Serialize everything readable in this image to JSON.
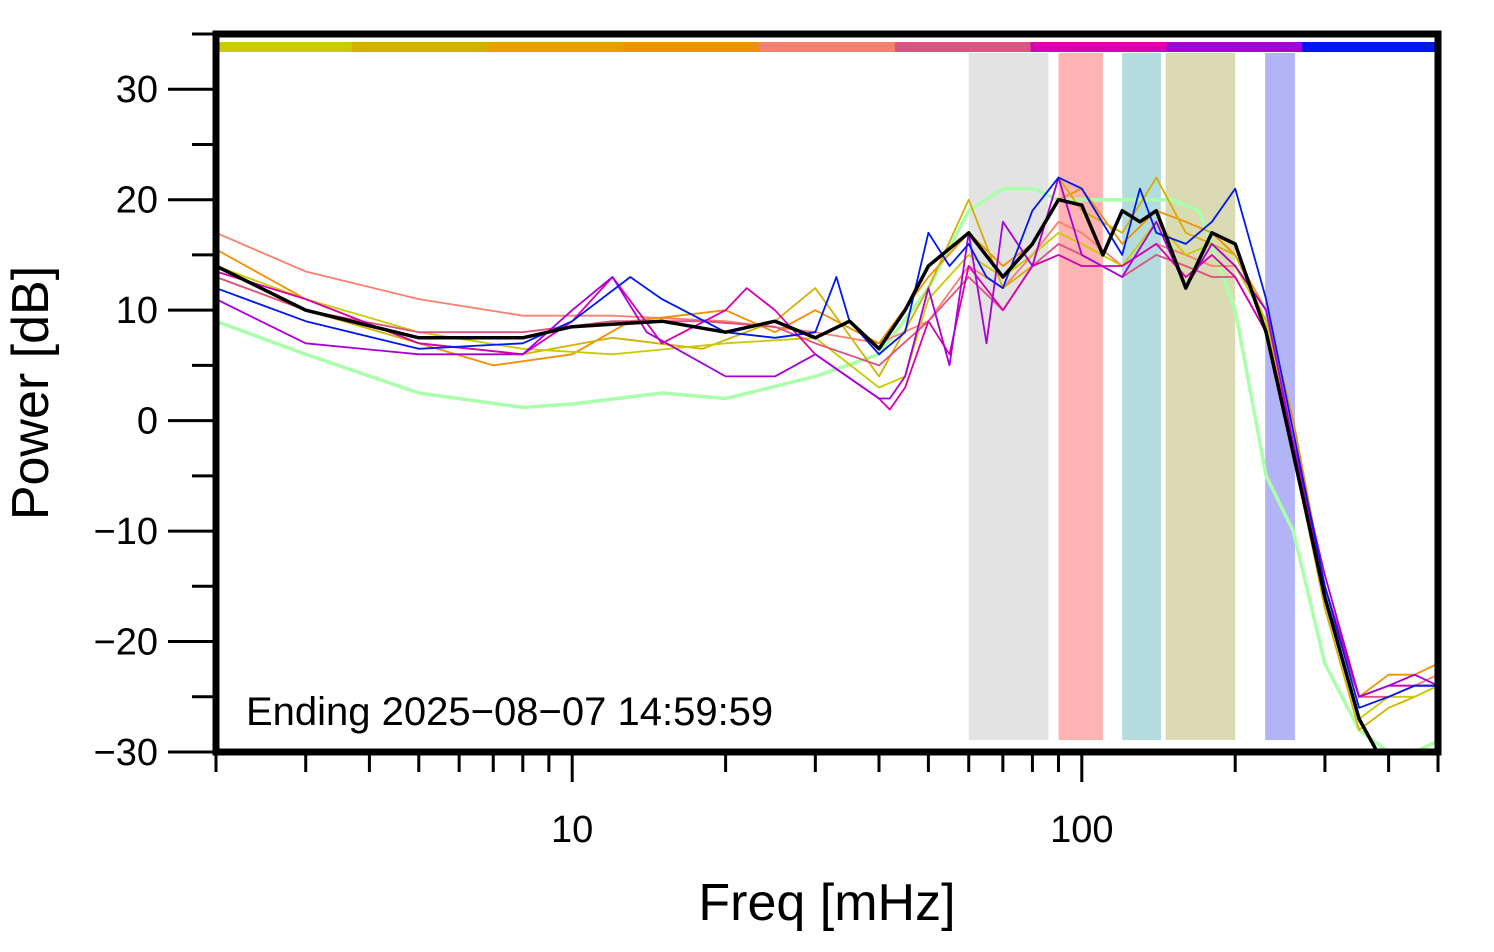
{
  "chart_data": {
    "type": "line",
    "xlabel": "Freq [mHz]",
    "ylabel": "Power [dB]",
    "x_scale": "log",
    "xlim": [
      2,
      500
    ],
    "ylim": [
      -30,
      35
    ],
    "x_tick_labels": [
      {
        "value": 10,
        "label": "10"
      },
      {
        "value": 100,
        "label": "100"
      }
    ],
    "y_tick_labels": [
      {
        "value": 30,
        "label": "30"
      },
      {
        "value": 20,
        "label": "20"
      },
      {
        "value": 10,
        "label": "10"
      },
      {
        "value": 0,
        "label": "0"
      },
      {
        "value": -10,
        "label": "−10"
      },
      {
        "value": -20,
        "label": "−20"
      },
      {
        "value": -30,
        "label": "−30"
      }
    ],
    "annotation": "Ending 2025−08−07 14:59:59",
    "bands": [
      {
        "from": 60,
        "to": 86,
        "color": "#e3e3e3"
      },
      {
        "from": 90,
        "to": 110,
        "color": "#ffb3b3"
      },
      {
        "from": 120,
        "to": 143,
        "color": "#b3dcdf"
      },
      {
        "from": 146,
        "to": 200,
        "color": "#dadab3"
      },
      {
        "from": 229,
        "to": 262,
        "color": "#b3b3f8"
      }
    ],
    "top_bar_colors": [
      "#c8cc00",
      "#d4b000",
      "#e8a000",
      "#f39000",
      "#fa7f6e",
      "#e05080",
      "#d800b0",
      "#a800d8",
      "#0018f0"
    ],
    "series": [
      {
        "color": "#aaffaa",
        "width": 3.5,
        "x": [
          2,
          3,
          5,
          8,
          10,
          15,
          20,
          30,
          40,
          50,
          60,
          70,
          80,
          90,
          100,
          120,
          140,
          150,
          170,
          200,
          230,
          260,
          300,
          350,
          400,
          450,
          500
        ],
        "y": [
          9,
          6,
          2.5,
          1.2,
          1.5,
          2.5,
          2,
          4,
          6,
          12,
          19,
          21,
          21,
          20,
          20,
          20,
          20,
          20,
          19,
          10,
          -5,
          -10,
          -22,
          -28,
          -30,
          -30,
          -29
        ]
      },
      {
        "color": "#fa7f6e",
        "width": 1.8,
        "x": [
          2,
          3,
          5,
          8,
          12,
          20,
          30,
          40,
          50,
          60,
          70,
          80,
          90,
          100,
          120,
          140,
          160,
          180,
          200,
          230,
          260,
          300,
          350,
          400,
          450,
          500
        ],
        "y": [
          17,
          13.5,
          11,
          9.5,
          9.5,
          9,
          8,
          7,
          9,
          14,
          12,
          15,
          18,
          17,
          14,
          16,
          15,
          14,
          14,
          9,
          -2,
          -15,
          -25,
          -24,
          -24,
          -23
        ]
      },
      {
        "color": "#f39000",
        "width": 1.8,
        "x": [
          2,
          3,
          5,
          7,
          10,
          13,
          20,
          25,
          30,
          40,
          50,
          60,
          70,
          80,
          90,
          100,
          120,
          140,
          160,
          180,
          200,
          230,
          260,
          300,
          350,
          400,
          450,
          500
        ],
        "y": [
          15.5,
          11,
          7,
          5,
          6,
          9,
          10,
          8,
          10,
          7,
          13,
          17,
          14,
          16,
          20,
          21,
          16,
          19,
          18,
          17,
          15,
          10,
          0,
          -15,
          -25,
          -23,
          -23,
          -22
        ]
      },
      {
        "color": "#d4b000",
        "width": 1.8,
        "x": [
          2,
          3,
          5,
          8,
          12,
          18,
          25,
          30,
          40,
          50,
          60,
          70,
          80,
          90,
          100,
          120,
          140,
          160,
          180,
          200,
          230,
          260,
          300,
          350,
          400,
          450,
          500
        ],
        "y": [
          13,
          10,
          7,
          6,
          7.5,
          6.5,
          9,
          12,
          4,
          12,
          20,
          12,
          14,
          22,
          19,
          17,
          22,
          17,
          16,
          15,
          9,
          -3,
          -17,
          -28,
          -26,
          -25,
          -24
        ]
      },
      {
        "color": "#c8cc00",
        "width": 1.8,
        "x": [
          2,
          3,
          5,
          8,
          12,
          20,
          30,
          40,
          45,
          50,
          60,
          70,
          80,
          90,
          100,
          120,
          140,
          160,
          180,
          200,
          230,
          260,
          300,
          350,
          400,
          450,
          500
        ],
        "y": [
          14,
          11,
          8,
          6.5,
          6,
          7,
          7.5,
          3,
          4,
          11,
          15,
          13,
          15,
          17,
          16,
          14,
          18,
          15,
          16,
          14,
          9,
          -3,
          -16,
          -27,
          -25,
          -25,
          -24
        ]
      },
      {
        "color": "#e05080",
        "width": 1.8,
        "x": [
          2,
          3,
          5,
          8,
          12,
          18,
          25,
          30,
          40,
          50,
          60,
          70,
          80,
          90,
          100,
          120,
          140,
          160,
          180,
          200,
          230,
          260,
          300,
          350,
          400,
          450,
          500
        ],
        "y": [
          13,
          10,
          8,
          8,
          9,
          9,
          8.5,
          7,
          5,
          9,
          13,
          10,
          14,
          16,
          15,
          13,
          15,
          14,
          13,
          13,
          8,
          -3,
          -16,
          -25,
          -25,
          -24,
          -24
        ]
      },
      {
        "color": "#d800b0",
        "width": 1.8,
        "x": [
          2,
          3,
          5,
          8,
          10,
          12,
          15,
          20,
          22,
          25,
          30,
          40,
          42,
          45,
          50,
          55,
          60,
          70,
          80,
          90,
          100,
          120,
          140,
          160,
          180,
          200,
          230,
          260,
          300,
          350,
          400,
          450,
          500
        ],
        "y": [
          13.5,
          11,
          7,
          6,
          9,
          13,
          7,
          10,
          12,
          10,
          6,
          2,
          1,
          3,
          9,
          6,
          14,
          10,
          14,
          15,
          14,
          14,
          16,
          13,
          15,
          13,
          8,
          -2,
          -15,
          -25,
          -24,
          -24,
          -24
        ]
      },
      {
        "color": "#a800d8",
        "width": 1.8,
        "x": [
          2,
          3,
          5,
          8,
          10,
          12,
          14,
          20,
          25,
          30,
          40,
          42,
          45,
          50,
          55,
          60,
          65,
          70,
          80,
          90,
          100,
          120,
          140,
          160,
          180,
          200,
          230,
          260,
          300,
          350,
          400,
          450,
          500
        ],
        "y": [
          11,
          7,
          6,
          6,
          10,
          13,
          8,
          4,
          4,
          6,
          2,
          2,
          4,
          12,
          5,
          17,
          7,
          18,
          14,
          22,
          15,
          13,
          18,
          12,
          16,
          14,
          10,
          -2,
          -14,
          -25,
          -24,
          -23,
          -24
        ]
      },
      {
        "color": "#0018f0",
        "width": 1.8,
        "x": [
          2,
          3,
          5,
          8,
          10,
          13,
          15,
          20,
          25,
          30,
          33,
          35,
          40,
          45,
          50,
          55,
          60,
          65,
          70,
          80,
          90,
          100,
          120,
          130,
          140,
          160,
          180,
          200,
          230,
          260,
          300,
          350,
          400,
          450,
          500
        ],
        "y": [
          12,
          9,
          6.5,
          7,
          9,
          13,
          11,
          8,
          7.5,
          8,
          13,
          9,
          6,
          8,
          17,
          14,
          16,
          13,
          12,
          19,
          22,
          21,
          15,
          21,
          17,
          16,
          18,
          21,
          11,
          -1,
          -15,
          -26,
          -25,
          -24,
          -24
        ]
      },
      {
        "color": "#000000",
        "width": 3.5,
        "x": [
          2,
          3,
          5,
          8,
          10,
          15,
          20,
          25,
          30,
          35,
          40,
          45,
          50,
          60,
          70,
          80,
          90,
          100,
          110,
          120,
          130,
          140,
          160,
          180,
          200,
          230,
          260,
          300,
          350,
          380,
          400,
          450,
          500
        ],
        "y": [
          14,
          10,
          7.5,
          7.5,
          8.5,
          9,
          8,
          9,
          7.5,
          9,
          6.5,
          10,
          14,
          17,
          13,
          16,
          20,
          19.5,
          15,
          19,
          18,
          19,
          12,
          17,
          16,
          8,
          -3,
          -16,
          -27,
          -30,
          -31,
          -31,
          -31
        ]
      }
    ]
  }
}
